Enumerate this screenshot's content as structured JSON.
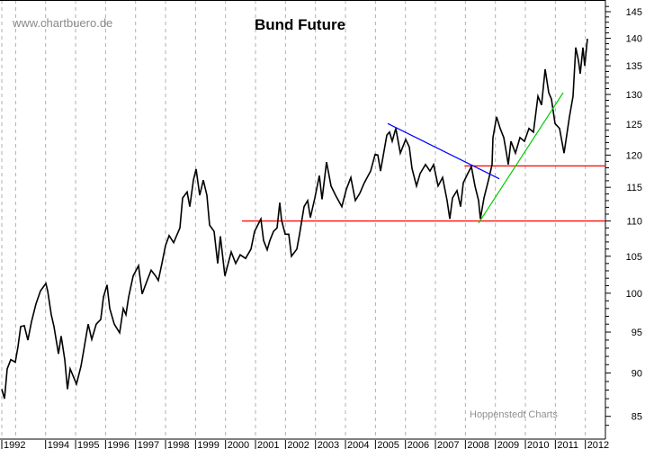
{
  "header": {
    "source": "www.chartbuero.de",
    "watermark": "Hoppenstedt Charts"
  },
  "chart_data": {
    "type": "line",
    "title": "Bund Future",
    "xlabel": "",
    "ylabel": "",
    "y_scale": "log",
    "ylim": [
      85,
      145
    ],
    "y_ticks": [
      85,
      90,
      95,
      100,
      105,
      110,
      115,
      120,
      125,
      130,
      135,
      140,
      145
    ],
    "x_tick_labels": [
      "1992",
      "1994",
      "1995",
      "1996",
      "1997",
      "1998",
      "1999",
      "2000",
      "2001",
      "2002",
      "2003",
      "2004",
      "2005",
      "2006",
      "2007",
      "2008",
      "2009",
      "2010",
      "2011",
      "2012"
    ],
    "grid": "vertical dashed at years",
    "colors": {
      "price": "#000000",
      "support": "#ff0000",
      "downtrend": "#0000ff",
      "uptrend": "#00cc00",
      "grid": "#b0b0b0"
    },
    "series": [
      {
        "points": [
          [
            1992.54,
            88.1
          ],
          [
            1992.63,
            87.0
          ],
          [
            1992.72,
            90.5
          ],
          [
            1992.84,
            91.6
          ],
          [
            1992.99,
            91.3
          ],
          [
            1993.08,
            93.2
          ],
          [
            1993.17,
            95.7
          ],
          [
            1993.29,
            95.8
          ],
          [
            1993.41,
            94.0
          ],
          [
            1993.53,
            96.3
          ],
          [
            1993.68,
            98.6
          ],
          [
            1993.83,
            100.3
          ],
          [
            1994.01,
            101.3
          ],
          [
            1994.07,
            100.3
          ],
          [
            1994.19,
            97.2
          ],
          [
            1994.28,
            95.7
          ],
          [
            1994.43,
            92.3
          ],
          [
            1994.52,
            94.5
          ],
          [
            1994.64,
            91.6
          ],
          [
            1994.73,
            88.1
          ],
          [
            1994.82,
            90.5
          ],
          [
            1995.03,
            88.7
          ],
          [
            1995.18,
            90.8
          ],
          [
            1995.27,
            92.7
          ],
          [
            1995.42,
            96.0
          ],
          [
            1995.54,
            94.1
          ],
          [
            1995.69,
            96.0
          ],
          [
            1995.84,
            96.6
          ],
          [
            1995.93,
            99.5
          ],
          [
            1996.05,
            101.1
          ],
          [
            1996.14,
            98.0
          ],
          [
            1996.29,
            96.0
          ],
          [
            1996.47,
            94.9
          ],
          [
            1996.59,
            98.0
          ],
          [
            1996.68,
            97.2
          ],
          [
            1996.77,
            99.5
          ],
          [
            1996.92,
            102.3
          ],
          [
            1997.1,
            103.7
          ],
          [
            1997.22,
            99.9
          ],
          [
            1997.37,
            101.5
          ],
          [
            1997.52,
            103.1
          ],
          [
            1997.67,
            102.3
          ],
          [
            1997.76,
            101.7
          ],
          [
            1997.88,
            104.0
          ],
          [
            1998.0,
            106.5
          ],
          [
            1998.12,
            107.9
          ],
          [
            1998.27,
            106.9
          ],
          [
            1998.48,
            109.0
          ],
          [
            1998.57,
            113.4
          ],
          [
            1998.72,
            114.3
          ],
          [
            1998.81,
            112.1
          ],
          [
            1998.93,
            116.1
          ],
          [
            1999.02,
            117.8
          ],
          [
            1999.14,
            113.8
          ],
          [
            1999.26,
            116.1
          ],
          [
            1999.38,
            113.8
          ],
          [
            1999.47,
            109.4
          ],
          [
            1999.62,
            108.5
          ],
          [
            1999.74,
            104.0
          ],
          [
            1999.83,
            107.8
          ],
          [
            1999.98,
            102.3
          ],
          [
            2000.19,
            105.6
          ],
          [
            2000.34,
            104.0
          ],
          [
            2000.49,
            105.2
          ],
          [
            2000.67,
            104.7
          ],
          [
            2000.85,
            106.0
          ],
          [
            2000.97,
            108.5
          ],
          [
            2001.18,
            110.3
          ],
          [
            2001.27,
            107.2
          ],
          [
            2001.39,
            105.9
          ],
          [
            2001.48,
            107.2
          ],
          [
            2001.6,
            108.5
          ],
          [
            2001.72,
            109.0
          ],
          [
            2001.81,
            112.7
          ],
          [
            2001.87,
            110.1
          ],
          [
            2001.99,
            108.1
          ],
          [
            2002.11,
            108.1
          ],
          [
            2002.2,
            105.0
          ],
          [
            2002.38,
            106.0
          ],
          [
            2002.47,
            108.1
          ],
          [
            2002.62,
            112.1
          ],
          [
            2002.74,
            113.0
          ],
          [
            2002.83,
            110.5
          ],
          [
            2002.98,
            113.4
          ],
          [
            2003.13,
            116.8
          ],
          [
            2003.22,
            113.2
          ],
          [
            2003.37,
            118.9
          ],
          [
            2003.52,
            115.2
          ],
          [
            2003.67,
            113.8
          ],
          [
            2003.88,
            112.1
          ],
          [
            2004.03,
            114.7
          ],
          [
            2004.18,
            116.5
          ],
          [
            2004.33,
            113.0
          ],
          [
            2004.48,
            114.1
          ],
          [
            2004.63,
            115.7
          ],
          [
            2004.84,
            117.5
          ],
          [
            2004.99,
            120.1
          ],
          [
            2005.08,
            120.0
          ],
          [
            2005.17,
            117.5
          ],
          [
            2005.38,
            123.2
          ],
          [
            2005.47,
            123.7
          ],
          [
            2005.56,
            122.2
          ],
          [
            2005.68,
            124.3
          ],
          [
            2005.83,
            120.3
          ],
          [
            2006.01,
            122.5
          ],
          [
            2006.13,
            121.3
          ],
          [
            2006.22,
            117.9
          ],
          [
            2006.37,
            115.2
          ],
          [
            2006.49,
            117.1
          ],
          [
            2006.67,
            118.5
          ],
          [
            2006.82,
            117.5
          ],
          [
            2006.94,
            118.5
          ],
          [
            2007.09,
            115.2
          ],
          [
            2007.24,
            116.5
          ],
          [
            2007.39,
            113.0
          ],
          [
            2007.48,
            110.3
          ],
          [
            2007.57,
            113.4
          ],
          [
            2007.72,
            114.5
          ],
          [
            2007.84,
            112.1
          ],
          [
            2007.93,
            115.7
          ],
          [
            2008.08,
            117.1
          ],
          [
            2008.2,
            118.2
          ],
          [
            2008.32,
            115.2
          ],
          [
            2008.44,
            113.0
          ],
          [
            2008.5,
            110.3
          ],
          [
            2008.62,
            113.4
          ],
          [
            2008.77,
            116.1
          ],
          [
            2008.89,
            118.5
          ],
          [
            2008.92,
            122.8
          ],
          [
            2009.04,
            126.2
          ],
          [
            2009.16,
            124.3
          ],
          [
            2009.28,
            122.8
          ],
          [
            2009.37,
            120.3
          ],
          [
            2009.43,
            118.5
          ],
          [
            2009.52,
            122.2
          ],
          [
            2009.67,
            120.3
          ],
          [
            2009.82,
            122.8
          ],
          [
            2009.97,
            122.2
          ],
          [
            2010.12,
            124.3
          ],
          [
            2010.27,
            123.7
          ],
          [
            2010.42,
            129.7
          ],
          [
            2010.54,
            128.2
          ],
          [
            2010.66,
            134.4
          ],
          [
            2010.78,
            130.3
          ],
          [
            2010.87,
            129.2
          ],
          [
            2010.99,
            125.1
          ],
          [
            2011.14,
            124.3
          ],
          [
            2011.29,
            120.3
          ],
          [
            2011.38,
            123.2
          ],
          [
            2011.47,
            126.2
          ],
          [
            2011.59,
            129.7
          ],
          [
            2011.68,
            138.3
          ],
          [
            2011.77,
            136.0
          ],
          [
            2011.83,
            133.6
          ],
          [
            2011.92,
            138.3
          ],
          [
            2011.98,
            135.0
          ],
          [
            2012.07,
            139.9
          ]
        ]
      }
    ],
    "annotations": {
      "support_lines": [
        {
          "value": 110,
          "from_year": 2000.55
        },
        {
          "value": 118.3,
          "from_year": 2007.97
        }
      ],
      "downtrend_line": {
        "from": [
          2005.41,
          125.1
        ],
        "to": [
          2009.13,
          116.3
        ]
      },
      "uptrend_line": {
        "from": [
          2008.44,
          109.7
        ],
        "to": [
          2011.26,
          130.3
        ]
      }
    }
  }
}
